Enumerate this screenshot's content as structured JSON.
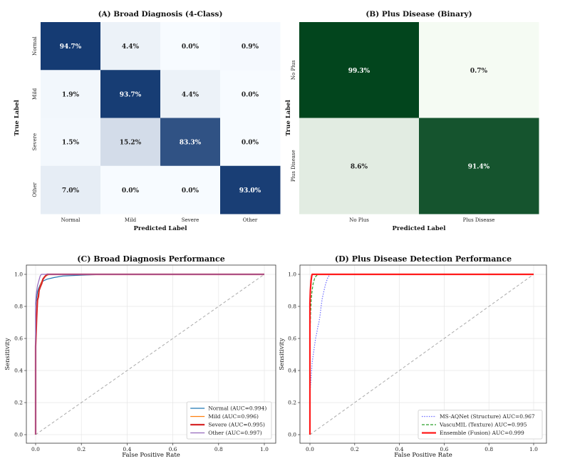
{
  "chart_data": [
    {
      "type": "heatmap",
      "title": "(A) Broad Diagnosis (4-Class)",
      "xlabel": "Predicted Label",
      "ylabel": "True Label",
      "x_categories": [
        "Normal",
        "Mild",
        "Severe",
        "Other"
      ],
      "y_categories": [
        "Normal",
        "Mild",
        "Severe",
        "Other"
      ],
      "values": [
        [
          94.7,
          4.4,
          0.0,
          0.9
        ],
        [
          1.9,
          93.7,
          4.4,
          0.0
        ],
        [
          1.5,
          15.2,
          83.3,
          0.0
        ],
        [
          7.0,
          0.0,
          0.0,
          93.0
        ]
      ],
      "cell_labels": [
        [
          "94.7%",
          "4.4%",
          "0.0%",
          "0.9%"
        ],
        [
          "1.9%",
          "93.7%",
          "4.4%",
          "0.0%"
        ],
        [
          "1.5%",
          "15.2%",
          "83.3%",
          "0.0%"
        ],
        [
          "7.0%",
          "0.0%",
          "0.0%",
          "93.0%"
        ]
      ],
      "colormap": "Blues",
      "color_low": "#f7fbff",
      "color_high": "#08306b"
    },
    {
      "type": "heatmap",
      "title": "(B) Plus Disease (Binary)",
      "xlabel": "Predicted Label",
      "ylabel": "True Label",
      "x_categories": [
        "No Plus",
        "Plus Disease"
      ],
      "y_categories": [
        "No Plus",
        "Plus Disease"
      ],
      "values": [
        [
          99.3,
          0.7
        ],
        [
          8.6,
          91.4
        ]
      ],
      "cell_labels": [
        [
          "99.3%",
          "0.7%"
        ],
        [
          "8.6%",
          "91.4%"
        ]
      ],
      "colormap": "Greens",
      "color_low": "#f7fcf5",
      "color_high": "#00441b"
    },
    {
      "type": "line",
      "title": "(C) Broad Diagnosis Performance",
      "xlabel": "False Positive Rate",
      "ylabel": "Sensitivity",
      "xlim": [
        0,
        1
      ],
      "ylim": [
        0,
        1
      ],
      "xticks": [
        "0.0",
        "0.2",
        "0.4",
        "0.6",
        "0.8",
        "1.0"
      ],
      "yticks": [
        "0.0",
        "0.2",
        "0.4",
        "0.6",
        "0.8",
        "1.0"
      ],
      "grid": true,
      "legend": "lower-right",
      "series": [
        {
          "name": "Normal (AUC=0.994)",
          "color": "#1f77b4",
          "style": "solid",
          "width": 1.2,
          "x": [
            0,
            0.0,
            0.002,
            0.005,
            0.008,
            0.012,
            0.018,
            0.025,
            0.035,
            0.05,
            0.08,
            0.12,
            0.2,
            0.3,
            1.0
          ],
          "y": [
            0,
            0.79,
            0.83,
            0.86,
            0.89,
            0.91,
            0.93,
            0.95,
            0.96,
            0.97,
            0.98,
            0.99,
            0.995,
            1.0,
            1.0
          ]
        },
        {
          "name": "Mild (AUC=0.996)",
          "color": "#ff7f0e",
          "style": "solid",
          "width": 1.2,
          "x": [
            0,
            0.0,
            0.003,
            0.006,
            0.01,
            0.014,
            0.018,
            0.022,
            0.028,
            0.035,
            0.045,
            0.06,
            1.0
          ],
          "y": [
            0,
            0.58,
            0.72,
            0.8,
            0.86,
            0.9,
            0.92,
            0.94,
            0.96,
            0.98,
            0.99,
            1.0,
            1.0
          ]
        },
        {
          "name": "Severe (AUC=0.995)",
          "color": "#d62728",
          "style": "solid",
          "width": 2.2,
          "x": [
            0,
            0.0,
            0.004,
            0.006,
            0.008,
            0.012,
            0.015,
            0.02,
            0.026,
            0.032,
            0.04,
            0.05,
            1.0
          ],
          "y": [
            0,
            0.55,
            0.72,
            0.78,
            0.84,
            0.86,
            0.9,
            0.92,
            0.94,
            0.97,
            0.985,
            1.0,
            1.0
          ]
        },
        {
          "name": "Other (AUC=0.997)",
          "color": "#9467bd",
          "style": "solid",
          "width": 1.2,
          "x": [
            0,
            0.0,
            0.002,
            0.005,
            0.008,
            0.012,
            0.016,
            0.02,
            0.025,
            1.0
          ],
          "y": [
            0,
            0.82,
            0.86,
            0.9,
            0.93,
            0.95,
            0.97,
            0.99,
            1.0,
            1.0
          ]
        }
      ],
      "diagonal": {
        "color": "#aaaaaa",
        "style": "dashed"
      }
    },
    {
      "type": "line",
      "title": "(D) Plus Disease Detection Performance",
      "xlabel": "False Positive Rate",
      "ylabel": "Sensitivity",
      "xlim": [
        0,
        1
      ],
      "ylim": [
        0,
        1
      ],
      "xticks": [
        "0.0",
        "0.2",
        "0.4",
        "0.6",
        "0.8",
        "1.0"
      ],
      "yticks": [
        "0.0",
        "0.2",
        "0.4",
        "0.6",
        "0.8",
        "1.0"
      ],
      "grid": true,
      "legend": "lower-right",
      "series": [
        {
          "name": "MS-AQNet (Structure) AUC=0.967",
          "color": "#6b6bff",
          "style": "dotted",
          "width": 1.2,
          "x": [
            0,
            0.0,
            0.005,
            0.01,
            0.015,
            0.02,
            0.025,
            0.03,
            0.035,
            0.04,
            0.045,
            0.05,
            0.055,
            0.06,
            0.07,
            0.08,
            0.09,
            1.0
          ],
          "y": [
            0,
            0.25,
            0.35,
            0.45,
            0.5,
            0.55,
            0.6,
            0.63,
            0.67,
            0.7,
            0.74,
            0.8,
            0.85,
            0.88,
            0.94,
            0.98,
            1.0,
            1.0
          ]
        },
        {
          "name": "VascuMIL (Texture) AUC=0.995",
          "color": "#2ca02c",
          "style": "dashed",
          "width": 1.2,
          "x": [
            0,
            0.0,
            0.003,
            0.006,
            0.01,
            0.014,
            0.018,
            0.022,
            0.028,
            0.035,
            1.0
          ],
          "y": [
            0,
            0.6,
            0.75,
            0.85,
            0.9,
            0.94,
            0.96,
            0.98,
            0.99,
            1.0,
            1.0
          ]
        },
        {
          "name": "Ensemble (Fusion) AUC=0.999",
          "color": "#ff1a1a",
          "style": "solid",
          "width": 2.2,
          "x": [
            0,
            0.0,
            0.002,
            0.005,
            0.008,
            0.01,
            1.0
          ],
          "y": [
            0,
            0.82,
            0.9,
            0.96,
            0.99,
            1.0,
            1.0
          ]
        }
      ],
      "diagonal": {
        "color": "#aaaaaa",
        "style": "dashed"
      }
    }
  ]
}
